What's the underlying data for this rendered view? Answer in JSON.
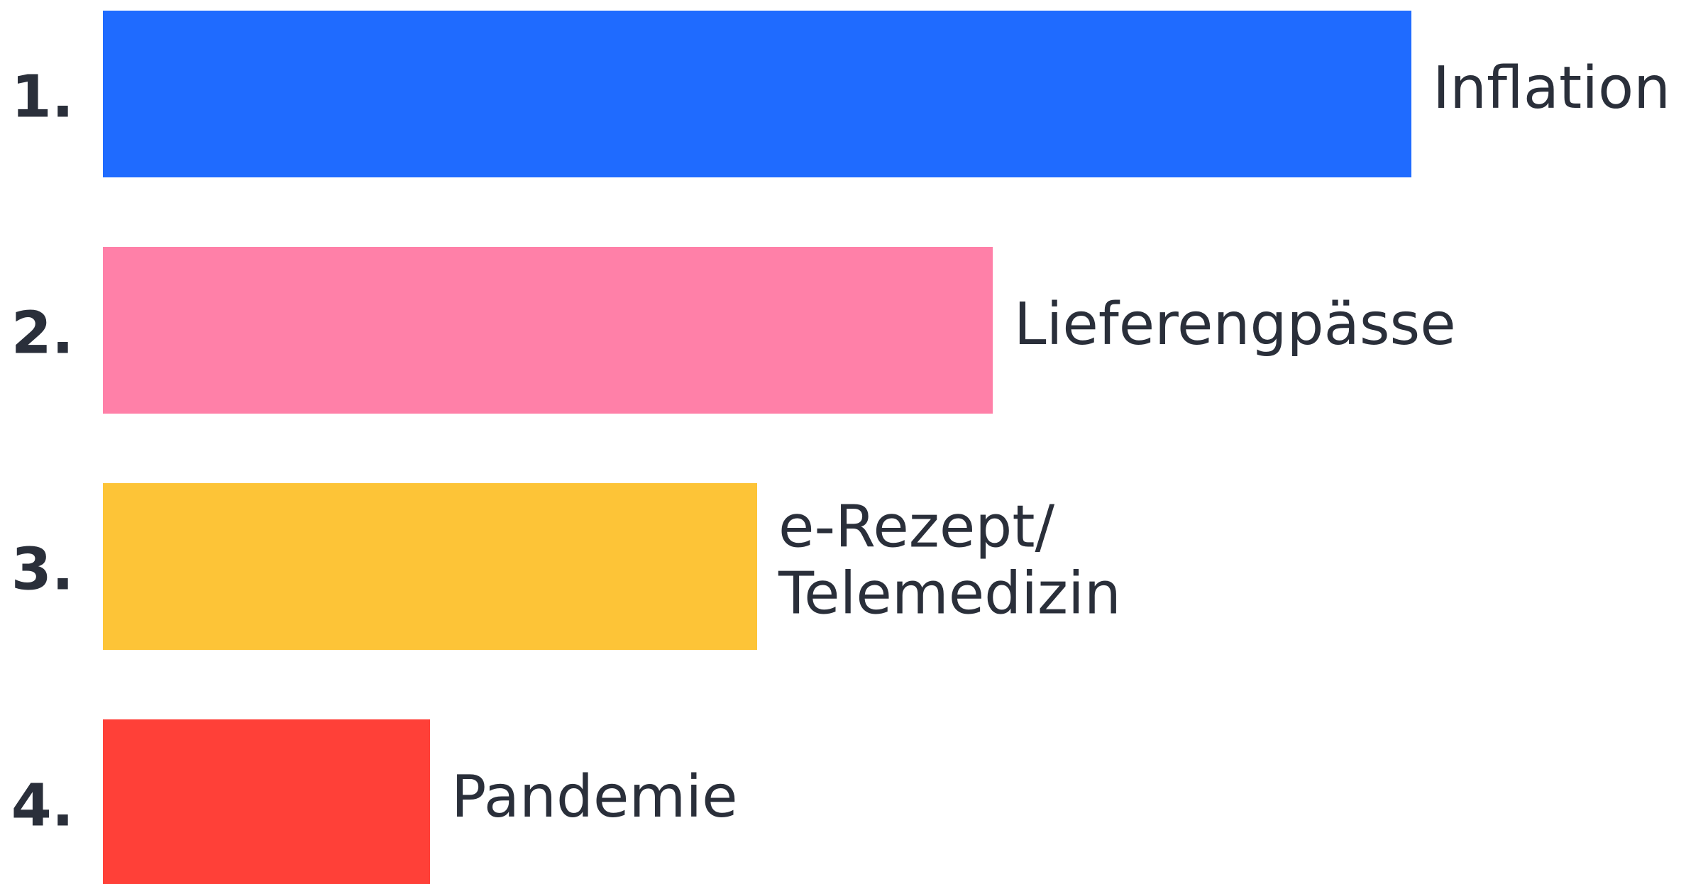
{
  "chart_data": {
    "type": "hbar",
    "ranks": [
      "1.",
      "2.",
      "3.",
      "4."
    ],
    "categories": [
      "Inflation",
      "Lieferengpässe",
      "e-Rezept/\nTelemedizin",
      "Pandemie"
    ],
    "values": [
      100,
      68,
      50,
      25
    ],
    "colors": [
      "#1f6bff",
      "#ff80a8",
      "#fdc437",
      "#ff4038"
    ]
  }
}
